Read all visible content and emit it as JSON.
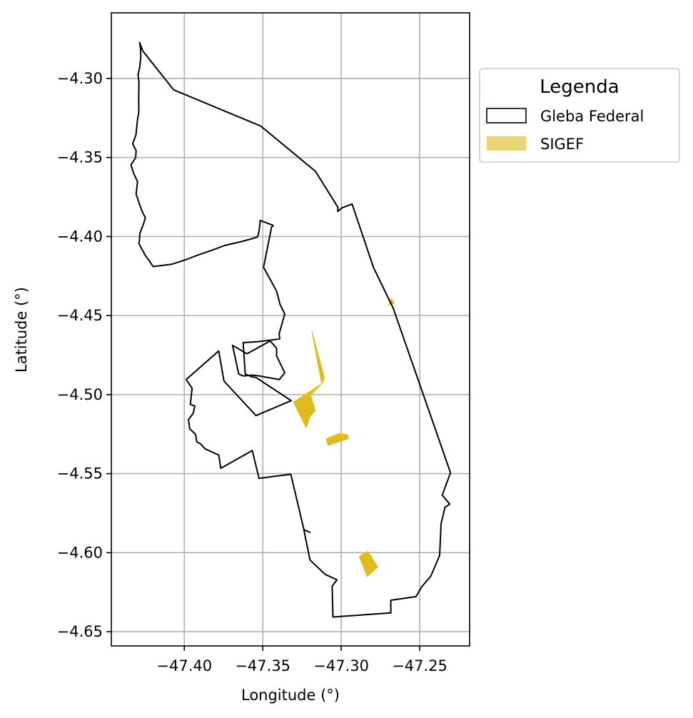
{
  "chart_data": {
    "type": "map",
    "xlabel": "Longitude (°)",
    "ylabel": "Latitude (°)",
    "xlim": [
      -47.4465,
      -47.2182
    ],
    "ylim": [
      -4.659,
      -4.2585
    ],
    "xticks": [
      -47.4,
      -47.35,
      -47.3,
      -47.25
    ],
    "yticks": [
      -4.3,
      -4.35,
      -4.4,
      -4.45,
      -4.5,
      -4.55,
      -4.6,
      -4.65
    ],
    "xtick_labels": [
      "−47.40",
      "−47.35",
      "−47.30",
      "−47.25"
    ],
    "ytick_labels": [
      "−4.30",
      "−4.35",
      "−4.40",
      "−4.45",
      "−4.50",
      "−4.55",
      "−4.60",
      "−4.65"
    ],
    "grid": true,
    "legend": {
      "title": "Legenda",
      "placement": "outside-upper-right",
      "entries": [
        {
          "label": "Gleba Federal",
          "style": "outline",
          "color": "#000000"
        },
        {
          "label": "SIGEF",
          "style": "fill",
          "color": "#ebd474"
        }
      ]
    },
    "colors": {
      "gleba_outline": "#000000",
      "sigef_fill": "#dfbb1d",
      "grid": "#b0b0b0"
    },
    "gleba_federal": [
      {
        "name": "outer",
        "coords": [
          [
            -47.4285,
            -4.2773
          ],
          [
            -47.4264,
            -4.2827
          ],
          [
            -47.4068,
            -4.3072
          ],
          [
            -47.3513,
            -4.3301
          ],
          [
            -47.3164,
            -4.3588
          ],
          [
            -47.3022,
            -4.3814
          ],
          [
            -47.3022,
            -4.3841
          ],
          [
            -47.2996,
            -4.3819
          ],
          [
            -47.2931,
            -4.3794
          ],
          [
            -47.2794,
            -4.4197
          ],
          [
            -47.2669,
            -4.4453
          ],
          [
            -47.2304,
            -4.5494
          ],
          [
            -47.2356,
            -4.5636
          ],
          [
            -47.2309,
            -4.5693
          ],
          [
            -47.2339,
            -4.5713
          ],
          [
            -47.2364,
            -4.5817
          ],
          [
            -47.2373,
            -4.6017
          ],
          [
            -47.2429,
            -4.6148
          ],
          [
            -47.2489,
            -4.6218
          ],
          [
            -47.2523,
            -4.6278
          ],
          [
            -47.2684,
            -4.6301
          ],
          [
            -47.2684,
            -4.6381
          ],
          [
            -47.3053,
            -4.6407
          ],
          [
            -47.3058,
            -4.6212
          ],
          [
            -47.3027,
            -4.6172
          ],
          [
            -47.3103,
            -4.6137
          ],
          [
            -47.3199,
            -4.6047
          ],
          [
            -47.3228,
            -4.5906
          ],
          [
            -47.3238,
            -4.5854
          ],
          [
            -47.32,
            -4.5872
          ],
          [
            -47.3238,
            -4.5854
          ],
          [
            -47.3321,
            -4.5504
          ],
          [
            -47.3524,
            -4.553
          ],
          [
            -47.3567,
            -4.5354
          ],
          [
            -47.3768,
            -4.5466
          ],
          [
            -47.378,
            -4.5383
          ],
          [
            -47.3868,
            -4.5343
          ],
          [
            -47.3897,
            -4.5311
          ],
          [
            -47.392,
            -4.53
          ],
          [
            -47.3929,
            -4.5251
          ],
          [
            -47.3965,
            -4.5217
          ],
          [
            -47.3974,
            -4.5158
          ],
          [
            -47.3943,
            -4.5118
          ],
          [
            -47.3933,
            -4.5072
          ],
          [
            -47.3962,
            -4.5063
          ],
          [
            -47.395,
            -4.496
          ],
          [
            -47.3988,
            -4.4905
          ],
          [
            -47.3781,
            -4.4724
          ],
          [
            -47.3747,
            -4.4915
          ],
          [
            -47.3543,
            -4.5133
          ],
          [
            -47.3319,
            -4.5038
          ],
          [
            -47.3545,
            -4.4891
          ],
          [
            -47.3568,
            -4.4888
          ],
          [
            -47.3612,
            -4.487
          ],
          [
            -47.3625,
            -4.4671
          ],
          [
            -47.3534,
            -4.4665
          ],
          [
            -47.3392,
            -4.4648
          ],
          [
            -47.3396,
            -4.4615
          ],
          [
            -47.336,
            -4.449
          ],
          [
            -47.339,
            -4.443
          ],
          [
            -47.3412,
            -4.4345
          ],
          [
            -47.3495,
            -4.4195
          ],
          [
            -47.3444,
            -4.394
          ],
          [
            -47.3433,
            -4.393
          ],
          [
            -47.3516,
            -4.3898
          ],
          [
            -47.3524,
            -4.397
          ],
          [
            -47.3534,
            -4.4003
          ],
          [
            -47.3576,
            -4.4016
          ],
          [
            -47.3636,
            -4.4032
          ],
          [
            -47.3744,
            -4.4057
          ],
          [
            -47.3828,
            -4.4088
          ],
          [
            -47.3904,
            -4.4114
          ],
          [
            -47.3986,
            -4.4145
          ],
          [
            -47.4077,
            -4.4175
          ],
          [
            -47.4126,
            -4.4181
          ],
          [
            -47.4199,
            -4.419
          ],
          [
            -47.422,
            -4.4158
          ],
          [
            -47.4246,
            -4.4124
          ],
          [
            -47.4259,
            -4.41
          ],
          [
            -47.4289,
            -4.4045
          ],
          [
            -47.4286,
            -4.4022
          ],
          [
            -47.4283,
            -4.398
          ],
          [
            -47.426,
            -4.392
          ],
          [
            -47.4248,
            -4.388
          ],
          [
            -47.426,
            -4.386
          ],
          [
            -47.4273,
            -4.383
          ],
          [
            -47.4287,
            -4.379
          ],
          [
            -47.4307,
            -4.3732
          ],
          [
            -47.4298,
            -4.3652
          ],
          [
            -47.432,
            -4.3607
          ],
          [
            -47.4334,
            -4.3567
          ],
          [
            -47.434,
            -4.3546
          ],
          [
            -47.431,
            -4.3501
          ],
          [
            -47.4307,
            -4.3457
          ],
          [
            -47.4329,
            -4.3413
          ],
          [
            -47.4308,
            -4.3357
          ],
          [
            -47.4299,
            -4.3267
          ],
          [
            -47.429,
            -4.3212
          ],
          [
            -47.4291,
            -4.3133
          ],
          [
            -47.4289,
            -4.3022
          ],
          [
            -47.4295,
            -4.2977
          ],
          [
            -47.4285,
            -4.2933
          ],
          [
            -47.4277,
            -4.2866
          ],
          [
            -47.4279,
            -4.2808
          ],
          [
            -47.4285,
            -4.2773
          ]
        ]
      },
      {
        "name": "inner",
        "coords": [
          [
            -47.3693,
            -4.4688
          ],
          [
            -47.3601,
            -4.4742
          ],
          [
            -47.3453,
            -4.4661
          ],
          [
            -47.3412,
            -4.4705
          ],
          [
            -47.3412,
            -4.4755
          ],
          [
            -47.336,
            -4.4862
          ],
          [
            -47.3394,
            -4.4905
          ],
          [
            -47.348,
            -4.489
          ],
          [
            -47.3517,
            -4.4883
          ],
          [
            -47.3564,
            -4.4877
          ],
          [
            -47.3625,
            -4.4882
          ],
          [
            -47.3653,
            -4.487
          ],
          [
            -47.3693,
            -4.4688
          ]
        ]
      }
    ],
    "sigef": [
      {
        "coords": [
          [
            -47.3187,
            -4.4598
          ],
          [
            -47.3125,
            -4.4932
          ],
          [
            -47.3195,
            -4.5003
          ],
          [
            -47.3165,
            -4.5103
          ],
          [
            -47.3197,
            -4.5135
          ],
          [
            -47.3223,
            -4.521
          ],
          [
            -47.3305,
            -4.5048
          ],
          [
            -47.3125,
            -4.4932
          ],
          [
            -47.3107,
            -4.4895
          ],
          [
            -47.3187,
            -4.4598
          ]
        ]
      },
      {
        "coords": [
          [
            -47.3096,
            -4.5281
          ],
          [
            -47.3015,
            -4.5247
          ],
          [
            -47.296,
            -4.5254
          ],
          [
            -47.2954,
            -4.5279
          ],
          [
            -47.3084,
            -4.5322
          ]
        ]
      },
      {
        "coords": [
          [
            -47.2767,
            -4.609
          ],
          [
            -47.2831,
            -4.5992
          ],
          [
            -47.2885,
            -4.6024
          ],
          [
            -47.2835,
            -4.6151
          ],
          [
            -47.2767,
            -4.609
          ]
        ]
      },
      {
        "coords": [
          [
            -47.2698,
            -4.4433
          ],
          [
            -47.2662,
            -4.4423
          ],
          [
            -47.268,
            -4.4393
          ]
        ]
      }
    ]
  }
}
